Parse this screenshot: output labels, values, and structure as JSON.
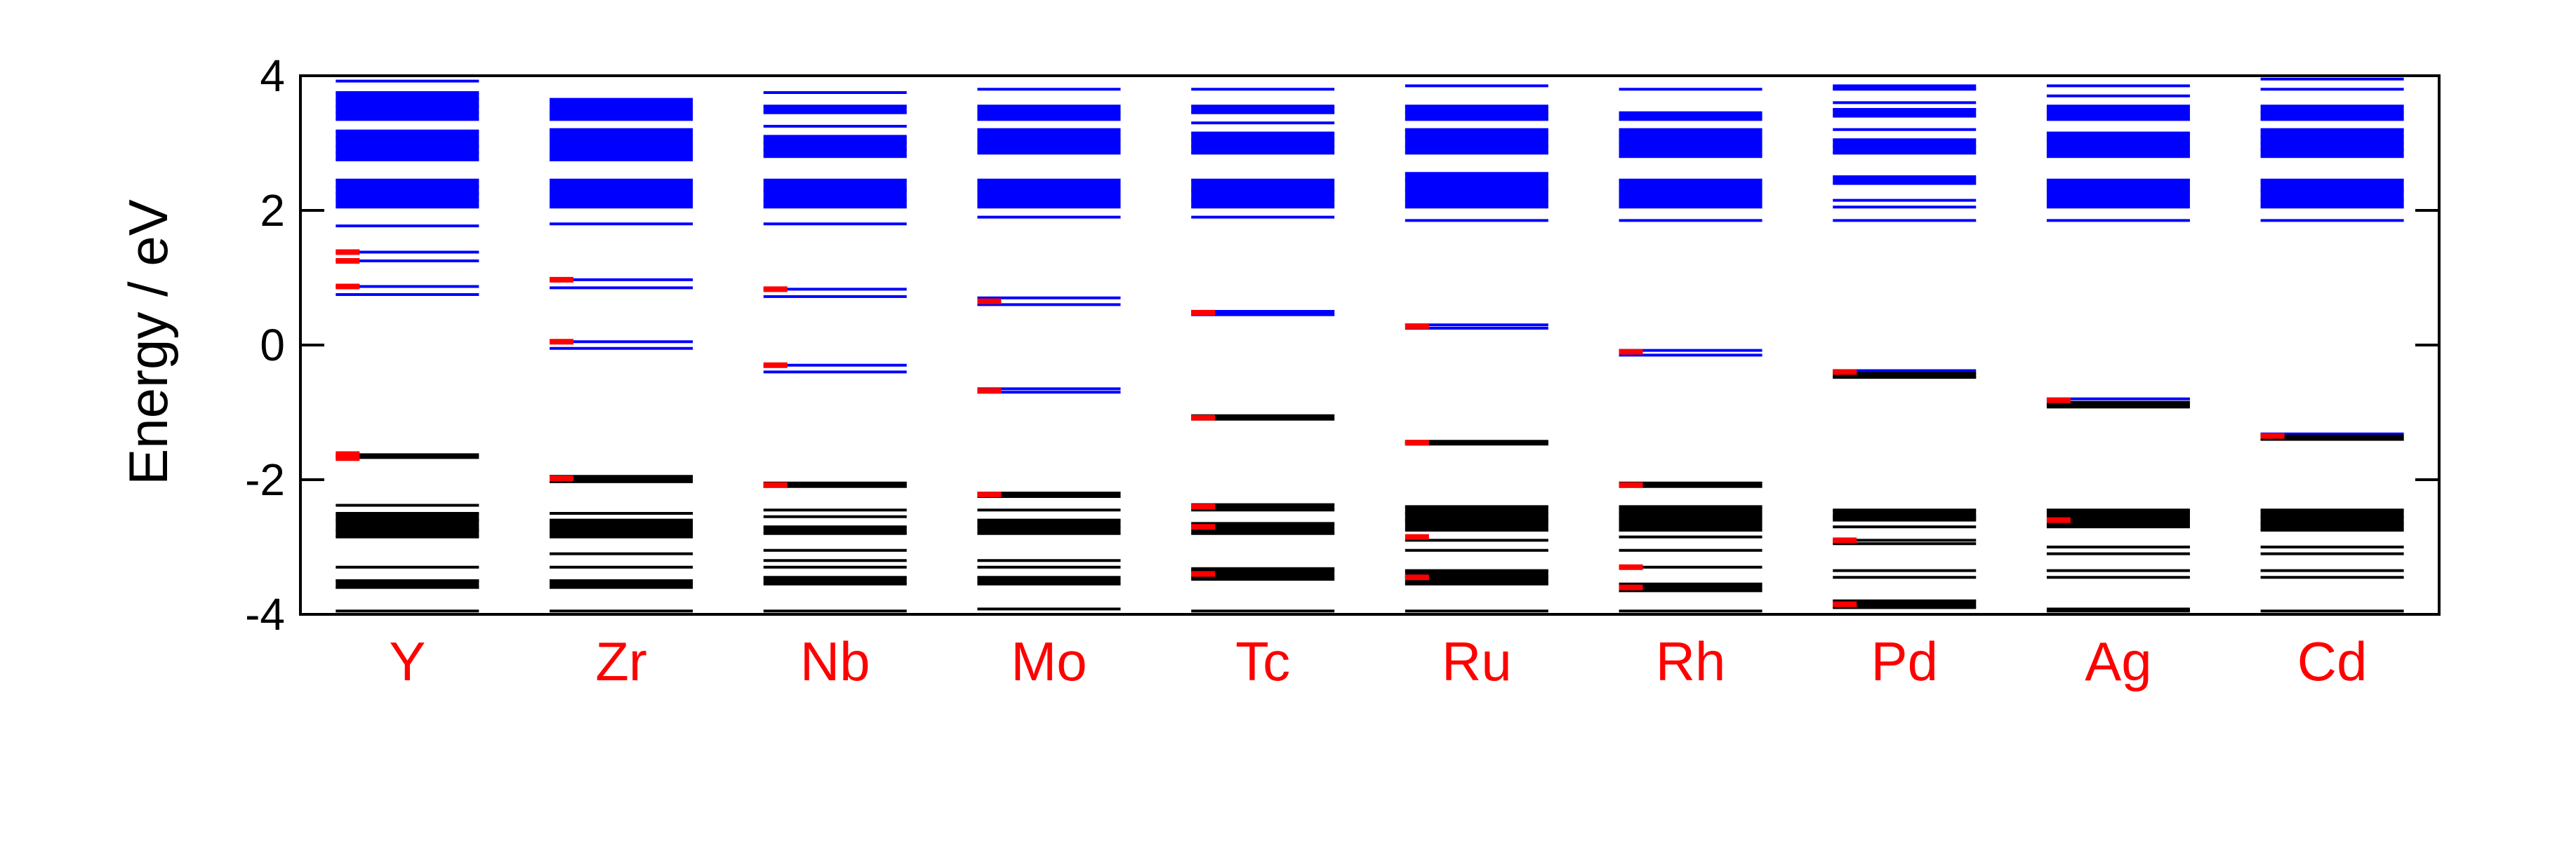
{
  "chart_data": {
    "type": "energy-level-diagram",
    "ylabel": "Energy / eV",
    "ylim": [
      -4,
      4
    ],
    "yticks": [
      -4,
      -2,
      0,
      2,
      4
    ],
    "grid": false,
    "legend": "none",
    "colors": {
      "unoccupied": "#0000ff",
      "occupied": "#000000",
      "marker": "#ff0000",
      "category_label": "#ff0000"
    },
    "categories": [
      "Y",
      "Zr",
      "Nb",
      "Mo",
      "Tc",
      "Ru",
      "Rh",
      "Pd",
      "Ag",
      "Cd"
    ],
    "groups": [
      {
        "label": "Y",
        "unoccupied": [
          0.75,
          0.87,
          1.25,
          1.38,
          1.77,
          2.05,
          2.15,
          2.25,
          2.35,
          2.45,
          2.75,
          2.85,
          2.95,
          3.08,
          3.18,
          3.35,
          3.45,
          3.55,
          3.65,
          3.75,
          3.92
        ],
        "unoccupied_bold": [
          [
            2.05,
            2.45
          ],
          [
            2.75,
            3.18
          ],
          [
            3.35,
            3.75
          ]
        ],
        "occupied": [
          -3.95,
          -3.6,
          -3.5,
          -3.3,
          -2.85,
          -2.75,
          -2.6,
          -2.5,
          -2.38
        ],
        "occupied_bold": [
          [
            -3.62,
            -3.48
          ],
          [
            -2.85,
            -2.5
          ]
        ],
        "marked": [
          0.87,
          1.25,
          1.38,
          -1.62,
          -1.68
        ],
        "homo": -1.65
      },
      {
        "label": "Zr",
        "unoccupied": [
          -0.05,
          0.05,
          0.85,
          0.97,
          1.8,
          2.05,
          2.15,
          2.3,
          2.45,
          2.75,
          2.85,
          2.95,
          3.1,
          3.2,
          3.35,
          3.45,
          3.55,
          3.65
        ],
        "unoccupied_bold": [
          [
            2.05,
            2.45
          ],
          [
            2.75,
            3.2
          ],
          [
            3.35,
            3.65
          ]
        ],
        "occupied": [
          -3.95,
          -3.6,
          -3.5,
          -3.3,
          -3.1,
          -2.85,
          -2.75,
          -2.6,
          -2.5,
          -2.03,
          -1.95
        ],
        "occupied_bold": [
          [
            -3.62,
            -3.48
          ],
          [
            -2.85,
            -2.6
          ]
        ],
        "marked": [
          0.05,
          0.97,
          -1.98
        ],
        "homo": -1.98
      },
      {
        "label": "Nb",
        "unoccupied": [
          -0.4,
          -0.3,
          0.72,
          0.83,
          1.8,
          2.05,
          2.15,
          2.3,
          2.45,
          2.8,
          2.9,
          3.0,
          3.1,
          3.25,
          3.45,
          3.55,
          3.75
        ],
        "unoccupied_bold": [
          [
            2.05,
            2.45
          ],
          [
            2.8,
            3.1
          ],
          [
            3.45,
            3.55
          ]
        ],
        "occupied": [
          -3.95,
          -3.55,
          -3.45,
          -3.3,
          -3.2,
          -3.05,
          -2.8,
          -2.7,
          -2.55,
          -2.45,
          -2.1,
          -2.05
        ],
        "occupied_bold": [
          [
            -3.55,
            -3.45
          ],
          [
            -2.8,
            -2.7
          ]
        ],
        "marked": [
          -0.3,
          0.83,
          -2.08
        ],
        "homo": -2.08
      },
      {
        "label": "Mo",
        "unoccupied": [
          -0.7,
          -0.65,
          0.6,
          0.7,
          1.9,
          2.05,
          2.15,
          2.3,
          2.45,
          2.85,
          2.95,
          3.05,
          3.2,
          3.35,
          3.45,
          3.55,
          3.8
        ],
        "unoccupied_bold": [
          [
            2.05,
            2.45
          ],
          [
            2.85,
            3.2
          ],
          [
            3.35,
            3.55
          ]
        ],
        "occupied": [
          -3.92,
          -3.55,
          -3.45,
          -3.3,
          -3.2,
          -2.8,
          -2.7,
          -2.6,
          -2.45,
          -2.25,
          -2.2
        ],
        "occupied_bold": [
          [
            -3.55,
            -3.45
          ],
          [
            -2.8,
            -2.6
          ]
        ],
        "marked": [
          -0.68,
          0.65,
          -2.22
        ],
        "homo": -2.22
      },
      {
        "label": "Tc",
        "unoccupied": [
          0.45,
          0.5,
          1.9,
          2.05,
          2.15,
          2.3,
          2.45,
          2.85,
          2.95,
          3.05,
          3.15,
          3.3,
          3.45,
          3.55,
          3.8
        ],
        "unoccupied_bold": [
          [
            0.44,
            0.52
          ],
          [
            2.05,
            2.45
          ],
          [
            2.85,
            3.15
          ],
          [
            3.45,
            3.55
          ]
        ],
        "occupied": [
          -3.95,
          -3.45,
          -3.35,
          -2.8,
          -2.65,
          -2.45,
          -2.38,
          -1.1,
          -1.05
        ],
        "occupied_bold": [
          [
            -3.5,
            -3.3
          ],
          [
            -2.8,
            -2.65
          ],
          [
            -2.45,
            -2.35
          ]
        ],
        "marked": [
          0.48,
          -1.08,
          -2.4,
          -2.7,
          -3.4
        ],
        "homo": -1.08
      },
      {
        "label": "Ru",
        "unoccupied": [
          0.25,
          0.3,
          1.85,
          2.05,
          2.15,
          2.3,
          2.45,
          2.55,
          2.85,
          2.95,
          3.1,
          3.2,
          3.35,
          3.45,
          3.55,
          3.85
        ],
        "unoccupied_bold": [
          [
            2.05,
            2.55
          ],
          [
            2.85,
            3.2
          ],
          [
            3.35,
            3.55
          ]
        ],
        "occupied": [
          -3.95,
          -3.55,
          -3.45,
          -3.35,
          -3.05,
          -2.9,
          -2.75,
          -2.6,
          -2.5,
          -2.4,
          -1.45
        ],
        "occupied_bold": [
          [
            -3.55,
            -3.35
          ],
          [
            -2.75,
            -2.4
          ]
        ],
        "marked": [
          0.28,
          -1.45,
          -2.85,
          -3.45
        ],
        "homo": -1.45
      },
      {
        "label": "Rh",
        "unoccupied": [
          -0.15,
          -0.08,
          1.85,
          2.05,
          2.15,
          2.3,
          2.45,
          2.8,
          2.9,
          3.0,
          3.1,
          3.2,
          3.35,
          3.45,
          3.8
        ],
        "unoccupied_bold": [
          [
            2.05,
            2.45
          ],
          [
            2.8,
            3.2
          ],
          [
            3.35,
            3.45
          ]
        ],
        "occupied": [
          -3.95,
          -3.65,
          -3.55,
          -3.3,
          -3.05,
          -2.85,
          -2.75,
          -2.6,
          -2.5,
          -2.4,
          -2.1,
          -2.05
        ],
        "occupied_bold": [
          [
            -3.65,
            -3.55
          ],
          [
            -2.75,
            -2.4
          ]
        ],
        "marked": [
          -0.1,
          -2.08,
          -3.3,
          -3.6
        ],
        "homo": -2.08
      },
      {
        "label": "Pd",
        "unoccupied": [
          -0.38,
          1.85,
          2.05,
          2.15,
          2.4,
          2.5,
          2.85,
          2.95,
          3.05,
          3.2,
          3.4,
          3.5,
          3.6,
          3.8,
          3.85
        ],
        "unoccupied_bold": [
          [
            2.4,
            2.5
          ],
          [
            2.85,
            3.05
          ],
          [
            3.4,
            3.5
          ],
          [
            3.8,
            3.85
          ]
        ],
        "occupied": [
          -3.9,
          -3.8,
          -3.45,
          -3.35,
          -2.95,
          -2.9,
          -2.7,
          -2.6,
          -2.55,
          -2.45,
          -0.48,
          -0.42
        ],
        "occupied_bold": [
          [
            -3.9,
            -3.8
          ],
          [
            -2.6,
            -2.45
          ]
        ],
        "marked": [
          -0.4,
          -2.9,
          -3.85
        ],
        "homo": -0.45
      },
      {
        "label": "Ag",
        "unoccupied": [
          -0.8,
          1.85,
          2.05,
          2.15,
          2.3,
          2.45,
          2.8,
          2.9,
          3.05,
          3.15,
          3.35,
          3.45,
          3.55,
          3.7,
          3.85
        ],
        "unoccupied_bold": [
          [
            2.05,
            2.45
          ],
          [
            2.8,
            3.15
          ],
          [
            3.35,
            3.55
          ]
        ],
        "occupied": [
          -3.95,
          -3.45,
          -3.35,
          -3.1,
          -3.0,
          -2.7,
          -2.6,
          -2.5,
          -2.45,
          -0.92,
          -0.85
        ],
        "occupied_bold": [
          [
            -3.95,
            -3.9
          ],
          [
            -2.7,
            -2.45
          ]
        ],
        "marked": [
          -0.82,
          -2.6
        ],
        "homo": -0.88
      },
      {
        "label": "Cd",
        "unoccupied": [
          -1.32,
          1.85,
          2.05,
          2.15,
          2.3,
          2.45,
          2.8,
          2.9,
          3.0,
          3.1,
          3.2,
          3.35,
          3.45,
          3.55,
          3.8,
          3.95
        ],
        "unoccupied_bold": [
          [
            2.05,
            2.45
          ],
          [
            2.8,
            3.2
          ],
          [
            3.35,
            3.55
          ]
        ],
        "occupied": [
          -3.95,
          -3.45,
          -3.35,
          -3.1,
          -3.0,
          -2.75,
          -2.65,
          -2.55,
          -2.45,
          -1.4,
          -1.35
        ],
        "occupied_bold": [
          [
            -2.75,
            -2.45
          ]
        ],
        "marked": [
          -1.35
        ],
        "homo": -1.38
      }
    ]
  }
}
